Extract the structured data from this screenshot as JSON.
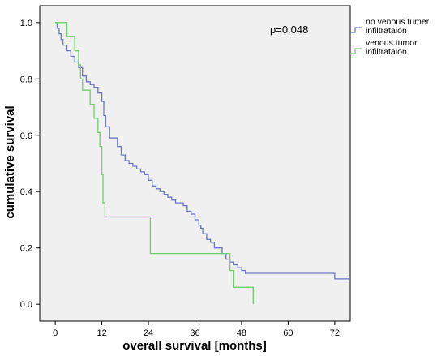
{
  "chart_data": {
    "type": "line",
    "step": true,
    "xlabel": "overall survival [months]",
    "ylabel": "cumulative survival",
    "xlim": [
      -4,
      76
    ],
    "ylim": [
      -0.06,
      1.06
    ],
    "xticks": [
      0,
      12,
      24,
      36,
      48,
      60,
      72
    ],
    "yticks": [
      0.0,
      0.2,
      0.4,
      0.6,
      0.8,
      1.0
    ],
    "ytick_labels": [
      "0.0",
      "0.2",
      "0.4",
      "0.6",
      "0.8",
      "1.0"
    ],
    "annotation": "p=0.048",
    "plot_background": "#f0f0f0",
    "legend_position": "top-right-outside",
    "series": [
      {
        "name": "no venous tumer infiltrataion",
        "color": "#6b78c0",
        "points": [
          [
            0,
            1.0
          ],
          [
            0.5,
            0.98
          ],
          [
            1,
            0.96
          ],
          [
            1.5,
            0.94
          ],
          [
            2,
            0.92
          ],
          [
            3,
            0.9
          ],
          [
            4,
            0.88
          ],
          [
            5,
            0.86
          ],
          [
            6,
            0.84
          ],
          [
            7,
            0.81
          ],
          [
            8,
            0.79
          ],
          [
            9,
            0.78
          ],
          [
            10,
            0.77
          ],
          [
            11,
            0.75
          ],
          [
            12,
            0.72
          ],
          [
            12.5,
            0.67
          ],
          [
            13,
            0.63
          ],
          [
            14,
            0.59
          ],
          [
            16,
            0.56
          ],
          [
            17,
            0.53
          ],
          [
            18,
            0.51
          ],
          [
            19,
            0.5
          ],
          [
            20,
            0.49
          ],
          [
            21,
            0.48
          ],
          [
            22,
            0.47
          ],
          [
            23,
            0.46
          ],
          [
            24,
            0.44
          ],
          [
            25,
            0.42
          ],
          [
            26,
            0.41
          ],
          [
            27,
            0.4
          ],
          [
            28,
            0.39
          ],
          [
            29,
            0.38
          ],
          [
            30,
            0.37
          ],
          [
            31,
            0.36
          ],
          [
            33,
            0.35
          ],
          [
            34,
            0.33
          ],
          [
            35,
            0.32
          ],
          [
            36,
            0.3
          ],
          [
            37,
            0.28
          ],
          [
            37.5,
            0.27
          ],
          [
            38,
            0.25
          ],
          [
            39,
            0.23
          ],
          [
            40,
            0.22
          ],
          [
            41,
            0.2
          ],
          [
            43,
            0.18
          ],
          [
            44,
            0.16
          ],
          [
            45,
            0.15
          ],
          [
            46,
            0.14
          ],
          [
            47,
            0.13
          ],
          [
            48,
            0.12
          ],
          [
            49,
            0.11
          ],
          [
            57,
            0.11
          ],
          [
            68,
            0.11
          ],
          [
            71,
            0.11
          ],
          [
            72,
            0.09
          ],
          [
            76,
            0.09
          ]
        ]
      },
      {
        "name": "venous tumor infiltrataion",
        "color": "#6ccf6c",
        "points": [
          [
            0,
            1.0
          ],
          [
            3,
            0.95
          ],
          [
            5,
            0.9
          ],
          [
            6,
            0.85
          ],
          [
            6.5,
            0.8
          ],
          [
            7,
            0.76
          ],
          [
            9,
            0.71
          ],
          [
            10,
            0.66
          ],
          [
            11,
            0.61
          ],
          [
            11.5,
            0.56
          ],
          [
            12,
            0.46
          ],
          [
            12.3,
            0.36
          ],
          [
            12.8,
            0.31
          ],
          [
            24,
            0.31
          ],
          [
            24.5,
            0.18
          ],
          [
            44,
            0.18
          ],
          [
            45,
            0.12
          ],
          [
            46,
            0.06
          ],
          [
            51,
            0.06
          ],
          [
            51,
            0.0
          ]
        ]
      }
    ]
  }
}
